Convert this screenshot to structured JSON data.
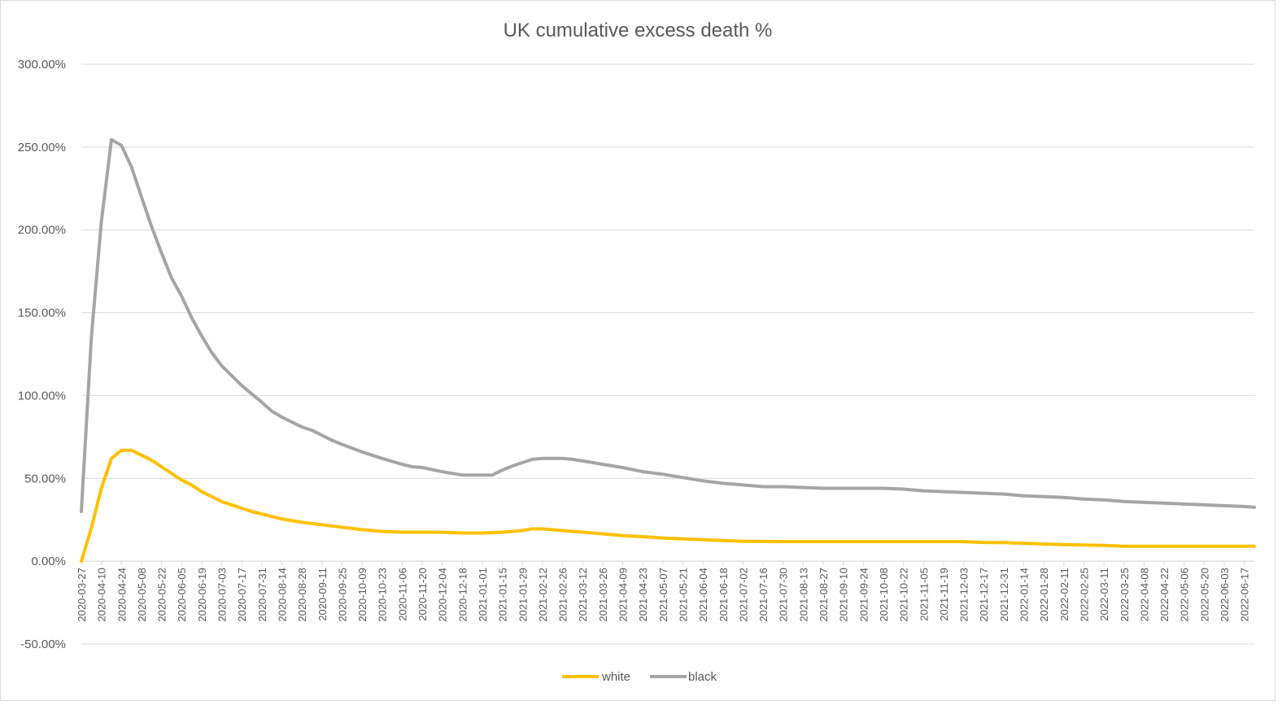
{
  "chart_data": {
    "type": "line",
    "title": "UK cumulative excess death %",
    "xlabel": "",
    "ylabel": "",
    "ylim": [
      -0.5,
      3.0
    ],
    "y_tick_values": [
      -0.5,
      0.0,
      0.5,
      1.0,
      1.5,
      2.0,
      2.5,
      3.0
    ],
    "y_tick_labels": [
      "-50.00%",
      "0.00%",
      "50.00%",
      "100.00%",
      "150.00%",
      "200.00%",
      "250.00%",
      "300.00%"
    ],
    "x_start": "2020-03-27",
    "x_end": "2022-06-24",
    "x_tick_labels": [
      "2020-03-27",
      "2020-04-10",
      "2020-04-24",
      "2020-05-08",
      "2020-05-22",
      "2020-06-05",
      "2020-06-19",
      "2020-07-03",
      "2020-07-17",
      "2020-07-31",
      "2020-08-14",
      "2020-08-28",
      "2020-09-11",
      "2020-09-25",
      "2020-10-09",
      "2020-10-23",
      "2020-11-06",
      "2020-11-20",
      "2020-12-04",
      "2020-12-18",
      "2021-01-01",
      "2021-01-15",
      "2021-01-29",
      "2021-02-12",
      "2021-02-26",
      "2021-03-12",
      "2021-03-26",
      "2021-04-09",
      "2021-04-23",
      "2021-05-07",
      "2021-05-21",
      "2021-06-04",
      "2021-06-18",
      "2021-07-02",
      "2021-07-16",
      "2021-07-30",
      "2021-08-13",
      "2021-08-27",
      "2021-09-10",
      "2021-09-24",
      "2021-10-08",
      "2021-10-22",
      "2021-11-05",
      "2021-11-19",
      "2021-12-03",
      "2021-12-17",
      "2021-12-31",
      "2022-01-14",
      "2022-01-28",
      "2022-02-11",
      "2022-02-25",
      "2022-03-11",
      "2022-03-25",
      "2022-04-08",
      "2022-04-22",
      "2022-05-06",
      "2022-05-20",
      "2022-06-03",
      "2022-06-17"
    ],
    "grid": true,
    "legend_position": "bottom",
    "series": [
      {
        "name": "white",
        "color": "#FFC000",
        "points": [
          [
            "2020-03-27",
            0.0
          ],
          [
            "2020-04-03",
            0.2
          ],
          [
            "2020-04-10",
            0.44
          ],
          [
            "2020-04-17",
            0.62
          ],
          [
            "2020-04-24",
            0.67
          ],
          [
            "2020-05-01",
            0.67
          ],
          [
            "2020-05-08",
            0.64
          ],
          [
            "2020-05-15",
            0.61
          ],
          [
            "2020-05-22",
            0.57
          ],
          [
            "2020-05-29",
            0.53
          ],
          [
            "2020-06-05",
            0.49
          ],
          [
            "2020-06-12",
            0.46
          ],
          [
            "2020-06-19",
            0.42
          ],
          [
            "2020-06-26",
            0.39
          ],
          [
            "2020-07-03",
            0.36
          ],
          [
            "2020-07-10",
            0.34
          ],
          [
            "2020-07-17",
            0.32
          ],
          [
            "2020-07-24",
            0.3
          ],
          [
            "2020-07-31",
            0.285
          ],
          [
            "2020-08-14",
            0.255
          ],
          [
            "2020-08-28",
            0.235
          ],
          [
            "2020-09-11",
            0.22
          ],
          [
            "2020-09-25",
            0.205
          ],
          [
            "2020-10-09",
            0.19
          ],
          [
            "2020-10-23",
            0.18
          ],
          [
            "2020-11-06",
            0.175
          ],
          [
            "2020-11-20",
            0.175
          ],
          [
            "2020-12-04",
            0.175
          ],
          [
            "2020-12-18",
            0.17
          ],
          [
            "2021-01-01",
            0.17
          ],
          [
            "2021-01-15",
            0.175
          ],
          [
            "2021-01-29",
            0.185
          ],
          [
            "2021-02-05",
            0.195
          ],
          [
            "2021-02-12",
            0.195
          ],
          [
            "2021-02-26",
            0.185
          ],
          [
            "2021-03-12",
            0.175
          ],
          [
            "2021-03-26",
            0.165
          ],
          [
            "2021-04-09",
            0.155
          ],
          [
            "2021-04-23",
            0.148
          ],
          [
            "2021-05-07",
            0.14
          ],
          [
            "2021-05-21",
            0.135
          ],
          [
            "2021-06-04",
            0.13
          ],
          [
            "2021-06-18",
            0.125
          ],
          [
            "2021-07-02",
            0.12
          ],
          [
            "2021-07-16",
            0.12
          ],
          [
            "2021-07-30",
            0.118
          ],
          [
            "2021-08-13",
            0.118
          ],
          [
            "2021-08-27",
            0.118
          ],
          [
            "2021-09-10",
            0.118
          ],
          [
            "2021-09-24",
            0.118
          ],
          [
            "2021-10-08",
            0.118
          ],
          [
            "2021-10-22",
            0.118
          ],
          [
            "2021-11-05",
            0.118
          ],
          [
            "2021-11-19",
            0.118
          ],
          [
            "2021-12-03",
            0.118
          ],
          [
            "2021-12-17",
            0.113
          ],
          [
            "2021-12-31",
            0.112
          ],
          [
            "2022-01-14",
            0.108
          ],
          [
            "2022-01-28",
            0.104
          ],
          [
            "2022-02-11",
            0.1
          ],
          [
            "2022-02-25",
            0.098
          ],
          [
            "2022-03-11",
            0.095
          ],
          [
            "2022-03-25",
            0.09
          ],
          [
            "2022-04-08",
            0.09
          ],
          [
            "2022-04-22",
            0.09
          ],
          [
            "2022-05-06",
            0.09
          ],
          [
            "2022-05-20",
            0.09
          ],
          [
            "2022-06-03",
            0.09
          ],
          [
            "2022-06-17",
            0.09
          ],
          [
            "2022-06-24",
            0.09
          ]
        ]
      },
      {
        "name": "black",
        "color": "#A5A5A5",
        "points": [
          [
            "2020-03-27",
            0.3
          ],
          [
            "2020-04-03",
            1.35
          ],
          [
            "2020-04-10",
            2.05
          ],
          [
            "2020-04-17",
            2.545
          ],
          [
            "2020-04-24",
            2.51
          ],
          [
            "2020-05-01",
            2.38
          ],
          [
            "2020-05-08",
            2.2
          ],
          [
            "2020-05-15",
            2.02
          ],
          [
            "2020-05-22",
            1.86
          ],
          [
            "2020-05-29",
            1.71
          ],
          [
            "2020-06-05",
            1.6
          ],
          [
            "2020-06-12",
            1.47
          ],
          [
            "2020-06-19",
            1.36
          ],
          [
            "2020-06-26",
            1.26
          ],
          [
            "2020-07-03",
            1.18
          ],
          [
            "2020-07-10",
            1.12
          ],
          [
            "2020-07-17",
            1.06
          ],
          [
            "2020-07-24",
            1.01
          ],
          [
            "2020-07-31",
            0.96
          ],
          [
            "2020-08-07",
            0.905
          ],
          [
            "2020-08-14",
            0.87
          ],
          [
            "2020-08-21",
            0.84
          ],
          [
            "2020-08-28",
            0.81
          ],
          [
            "2020-09-04",
            0.79
          ],
          [
            "2020-09-11",
            0.76
          ],
          [
            "2020-09-18",
            0.73
          ],
          [
            "2020-09-25",
            0.705
          ],
          [
            "2020-10-09",
            0.66
          ],
          [
            "2020-10-23",
            0.62
          ],
          [
            "2020-11-06",
            0.585
          ],
          [
            "2020-11-13",
            0.57
          ],
          [
            "2020-11-20",
            0.565
          ],
          [
            "2020-12-04",
            0.54
          ],
          [
            "2020-12-11",
            0.53
          ],
          [
            "2020-12-18",
            0.52
          ],
          [
            "2020-12-25",
            0.52
          ],
          [
            "2021-01-01",
            0.52
          ],
          [
            "2021-01-08",
            0.52
          ],
          [
            "2021-01-15",
            0.55
          ],
          [
            "2021-01-22",
            0.575
          ],
          [
            "2021-01-29",
            0.595
          ],
          [
            "2021-02-05",
            0.615
          ],
          [
            "2021-02-12",
            0.62
          ],
          [
            "2021-02-19",
            0.62
          ],
          [
            "2021-02-26",
            0.62
          ],
          [
            "2021-03-05",
            0.615
          ],
          [
            "2021-03-12",
            0.605
          ],
          [
            "2021-03-19",
            0.595
          ],
          [
            "2021-03-26",
            0.585
          ],
          [
            "2021-04-09",
            0.565
          ],
          [
            "2021-04-23",
            0.54
          ],
          [
            "2021-05-07",
            0.525
          ],
          [
            "2021-05-21",
            0.505
          ],
          [
            "2021-06-04",
            0.485
          ],
          [
            "2021-06-18",
            0.47
          ],
          [
            "2021-07-02",
            0.46
          ],
          [
            "2021-07-16",
            0.45
          ],
          [
            "2021-07-30",
            0.45
          ],
          [
            "2021-08-13",
            0.445
          ],
          [
            "2021-08-27",
            0.44
          ],
          [
            "2021-09-10",
            0.44
          ],
          [
            "2021-09-24",
            0.44
          ],
          [
            "2021-10-08",
            0.44
          ],
          [
            "2021-10-22",
            0.435
          ],
          [
            "2021-11-05",
            0.425
          ],
          [
            "2021-11-19",
            0.42
          ],
          [
            "2021-12-03",
            0.415
          ],
          [
            "2021-12-17",
            0.41
          ],
          [
            "2021-12-31",
            0.405
          ],
          [
            "2022-01-14",
            0.395
          ],
          [
            "2022-01-28",
            0.39
          ],
          [
            "2022-02-11",
            0.385
          ],
          [
            "2022-02-25",
            0.375
          ],
          [
            "2022-03-11",
            0.37
          ],
          [
            "2022-03-25",
            0.36
          ],
          [
            "2022-04-08",
            0.355
          ],
          [
            "2022-04-22",
            0.35
          ],
          [
            "2022-05-06",
            0.345
          ],
          [
            "2022-05-20",
            0.34
          ],
          [
            "2022-06-03",
            0.335
          ],
          [
            "2022-06-17",
            0.33
          ],
          [
            "2022-06-24",
            0.325
          ]
        ]
      }
    ]
  }
}
